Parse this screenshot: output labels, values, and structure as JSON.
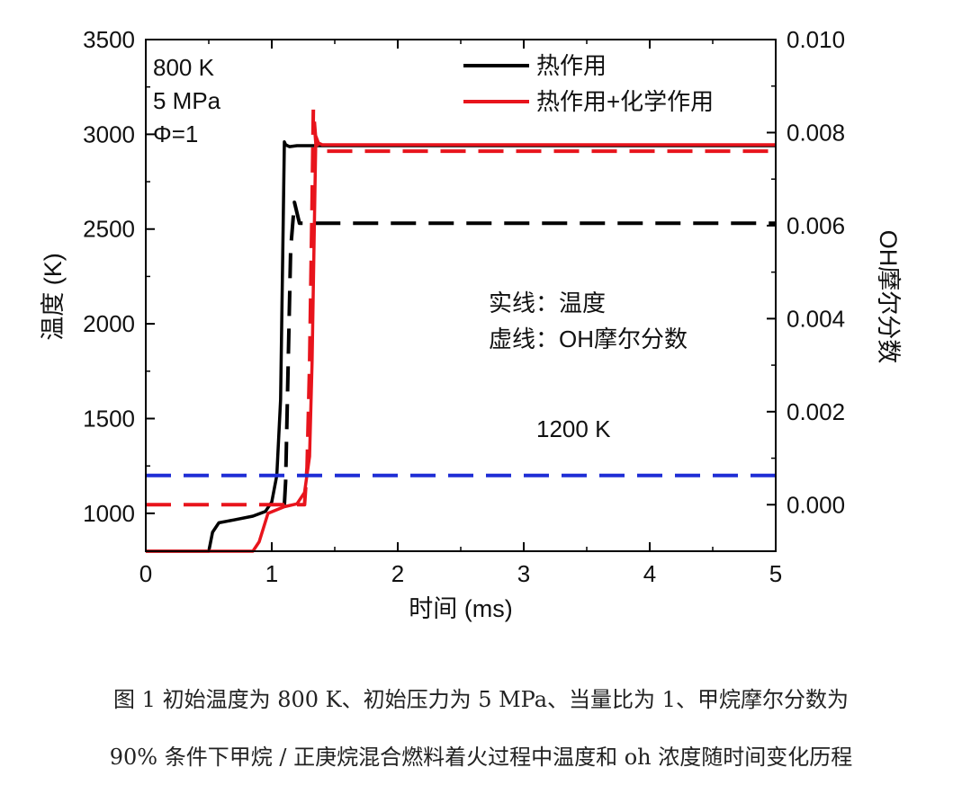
{
  "chart_data": {
    "type": "line",
    "xlabel": "时间 (ms)",
    "ylabel_left": "温度 (K)",
    "ylabel_right": "OH摩尔分数",
    "xlim": [
      0,
      5
    ],
    "ylim_left": [
      800,
      3500
    ],
    "ylim_right": [
      -0.001,
      0.01
    ],
    "x_ticks": [
      0,
      1,
      2,
      3,
      4,
      5
    ],
    "y_ticks_left": [
      1000,
      1500,
      2000,
      2500,
      3000,
      3500
    ],
    "y_ticks_right": [
      "0.000",
      "0.002",
      "0.004",
      "0.006",
      "0.008",
      "0.010"
    ],
    "grid": false,
    "conditions": [
      "800 K",
      "5 MPa",
      "Φ=1"
    ],
    "legend": {
      "position": "top-right",
      "entries": [
        {
          "label": "热作用",
          "color": "#000000"
        },
        {
          "label": "热作用+化学作用",
          "color": "#e8141c"
        }
      ]
    },
    "annotations": {
      "solid_note": "实线：温度",
      "dashed_note": "虚线：OH摩尔分数",
      "reference": "1200 K"
    },
    "series": [
      {
        "name": "热作用",
        "axis": "left",
        "style": "solid",
        "color": "#000000",
        "x": [
          0,
          0.5,
          0.53,
          0.58,
          0.7,
          0.85,
          0.95,
          1.0,
          1.04,
          1.07,
          1.09,
          1.1,
          1.11,
          1.14,
          1.2,
          5
        ],
        "y": [
          800,
          800,
          900,
          950,
          965,
          985,
          1010,
          1060,
          1200,
          1600,
          2500,
          2960,
          2945,
          2935,
          2940,
          2940
        ]
      },
      {
        "name": "热作用",
        "axis": "right",
        "style": "dashed",
        "color": "#000000",
        "x": [
          1.1,
          1.11,
          1.13,
          1.15,
          1.18,
          1.22,
          5
        ],
        "y": [
          0.0,
          0.0005,
          0.003,
          0.0055,
          0.0065,
          0.00605,
          0.00605
        ]
      },
      {
        "name": "热作用+化学作用",
        "axis": "left",
        "style": "solid",
        "color": "#e8141c",
        "x": [
          0,
          0.85,
          0.9,
          0.97,
          1.1,
          1.2,
          1.26,
          1.3,
          1.32,
          1.34,
          1.35,
          1.37,
          1.4,
          1.45,
          5
        ],
        "y": [
          800,
          800,
          850,
          1000,
          1035,
          1050,
          1110,
          1300,
          1800,
          2600,
          2990,
          2955,
          2945,
          2945,
          2945
        ]
      },
      {
        "name": "热作用+化学作用",
        "axis": "right",
        "style": "dashed",
        "color": "#e8141c",
        "x": [
          0,
          1.26,
          1.28,
          1.3,
          1.32,
          1.33,
          1.35,
          1.38,
          1.42,
          5
        ],
        "y": [
          0.0,
          0.0,
          0.0008,
          0.003,
          0.0065,
          0.0085,
          0.0078,
          0.0076,
          0.0076,
          0.0076
        ]
      },
      {
        "name": "1200 K",
        "axis": "left",
        "style": "dashed",
        "color": "#1f2ed6",
        "x": [
          0,
          5
        ],
        "y": [
          1200,
          1200
        ]
      }
    ]
  },
  "caption": {
    "line1": "图 1 初始温度为 800 K、初始压力为 5 MPa、当量比为 1、甲烷摩尔分数为",
    "line2": "90% 条件下甲烷 / 正庚烷混合燃料着火过程中温度和 oh 浓度随时间变化历程"
  }
}
